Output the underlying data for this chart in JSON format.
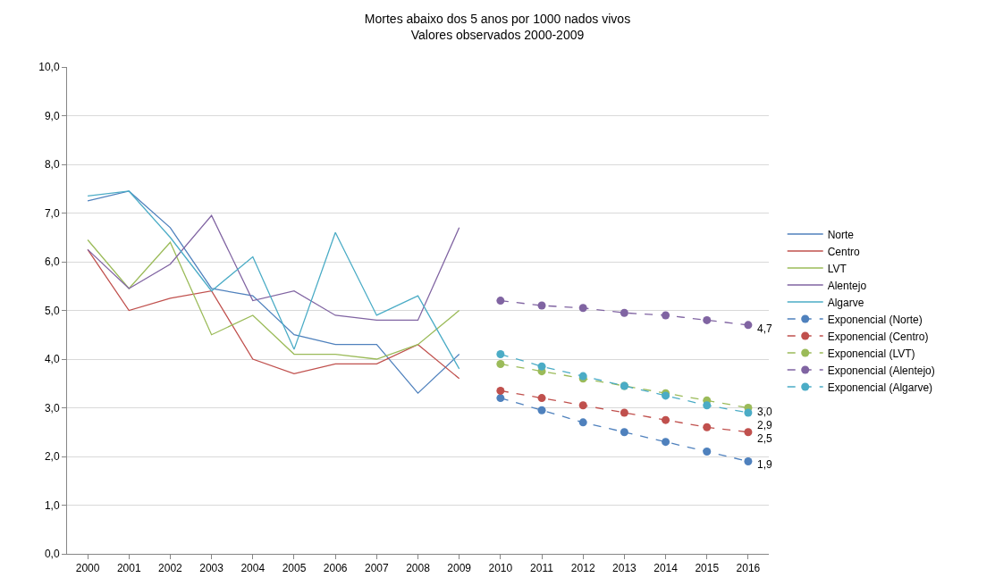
{
  "chart_data": {
    "type": "line",
    "title": "Mortes abaixo dos 5 anos por 1000 nados vivos",
    "subtitle": "Valores observados 2000-2009",
    "categories": [
      "2000",
      "2001",
      "2002",
      "2003",
      "2004",
      "2005",
      "2006",
      "2007",
      "2008",
      "2009",
      "2010",
      "2011",
      "2012",
      "2013",
      "2014",
      "2015",
      "2016"
    ],
    "series": [
      {
        "name": "Norte",
        "color": "#4f81bd",
        "marker": "none",
        "line_style": "solid",
        "values": [
          7.25,
          7.45,
          6.7,
          5.45,
          5.3,
          4.5,
          4.3,
          4.3,
          3.3,
          4.1,
          null,
          null,
          null,
          null,
          null,
          null,
          null
        ]
      },
      {
        "name": "Centro",
        "color": "#c0504d",
        "marker": "none",
        "line_style": "solid",
        "values": [
          6.25,
          5.0,
          5.25,
          5.4,
          4.0,
          3.7,
          3.9,
          3.9,
          4.3,
          3.6,
          null,
          null,
          null,
          null,
          null,
          null,
          null
        ]
      },
      {
        "name": "LVT",
        "color": "#9bbb59",
        "marker": "none",
        "line_style": "solid",
        "values": [
          6.45,
          5.45,
          6.4,
          4.5,
          4.9,
          4.1,
          4.1,
          4.0,
          4.3,
          5.0,
          null,
          null,
          null,
          null,
          null,
          null,
          null
        ]
      },
      {
        "name": "Alentejo",
        "color": "#8064a2",
        "marker": "none",
        "line_style": "solid",
        "values": [
          6.25,
          5.45,
          5.95,
          6.95,
          5.2,
          5.4,
          4.9,
          4.8,
          4.8,
          6.7,
          null,
          null,
          null,
          null,
          null,
          null,
          null
        ]
      },
      {
        "name": "Algarve",
        "color": "#4bacc6",
        "marker": "none",
        "line_style": "solid",
        "values": [
          7.35,
          7.45,
          6.5,
          5.4,
          6.1,
          4.2,
          6.6,
          4.9,
          5.3,
          3.8,
          null,
          null,
          null,
          null,
          null,
          null,
          null
        ]
      },
      {
        "name": "Exponencial (Norte)",
        "color": "#4f81bd",
        "marker": "circle",
        "line_style": "dashed",
        "values": [
          null,
          null,
          null,
          null,
          null,
          null,
          null,
          null,
          null,
          null,
          3.2,
          2.95,
          2.7,
          2.5,
          2.3,
          2.1,
          1.9
        ],
        "value_labels": [
          null,
          null,
          null,
          null,
          null,
          null,
          null,
          null,
          null,
          null,
          null,
          null,
          null,
          null,
          null,
          null,
          "1,9"
        ]
      },
      {
        "name": "Exponencial (Centro)",
        "color": "#c0504d",
        "marker": "circle",
        "line_style": "dashed",
        "values": [
          null,
          null,
          null,
          null,
          null,
          null,
          null,
          null,
          null,
          null,
          3.35,
          3.2,
          3.05,
          2.9,
          2.75,
          2.6,
          2.5
        ],
        "value_labels": [
          null,
          null,
          null,
          null,
          null,
          null,
          null,
          null,
          null,
          null,
          null,
          null,
          null,
          null,
          null,
          null,
          "2,5"
        ]
      },
      {
        "name": "Exponencial (LVT)",
        "color": "#9bbb59",
        "marker": "circle",
        "line_style": "dashed",
        "values": [
          null,
          null,
          null,
          null,
          null,
          null,
          null,
          null,
          null,
          null,
          3.9,
          3.75,
          3.6,
          3.45,
          3.3,
          3.15,
          3.0
        ],
        "value_labels": [
          null,
          null,
          null,
          null,
          null,
          null,
          null,
          null,
          null,
          null,
          null,
          null,
          null,
          null,
          null,
          null,
          "3,0"
        ]
      },
      {
        "name": "Exponencial (Alentejo)",
        "color": "#8064a2",
        "marker": "circle",
        "line_style": "dashed",
        "values": [
          null,
          null,
          null,
          null,
          null,
          null,
          null,
          null,
          null,
          null,
          5.2,
          5.1,
          5.05,
          4.95,
          4.9,
          4.8,
          4.7
        ],
        "value_labels": [
          null,
          null,
          null,
          null,
          null,
          null,
          null,
          null,
          null,
          null,
          null,
          null,
          null,
          null,
          null,
          null,
          "4,7"
        ]
      },
      {
        "name": "Exponencial (Algarve)",
        "color": "#4bacc6",
        "marker": "circle",
        "line_style": "dashed",
        "values": [
          null,
          null,
          null,
          null,
          null,
          null,
          null,
          null,
          null,
          null,
          4.1,
          3.85,
          3.65,
          3.45,
          3.25,
          3.05,
          2.9
        ],
        "value_labels": [
          null,
          null,
          null,
          null,
          null,
          null,
          null,
          null,
          null,
          null,
          null,
          null,
          null,
          null,
          null,
          null,
          "2,9"
        ]
      }
    ],
    "ylim": [
      0,
      10
    ],
    "yticks": [
      {
        "value": 0,
        "label": "0,0"
      },
      {
        "value": 1,
        "label": "1,0"
      },
      {
        "value": 2,
        "label": "2,0"
      },
      {
        "value": 3,
        "label": "3,0"
      },
      {
        "value": 4,
        "label": "4,0"
      },
      {
        "value": 5,
        "label": "5,0"
      },
      {
        "value": 6,
        "label": "6,0"
      },
      {
        "value": 7,
        "label": "7,0"
      },
      {
        "value": 8,
        "label": "8,0"
      },
      {
        "value": 9,
        "label": "9,0"
      },
      {
        "value": 10,
        "label": "10,0"
      }
    ],
    "grid": "y",
    "legend": "right"
  }
}
